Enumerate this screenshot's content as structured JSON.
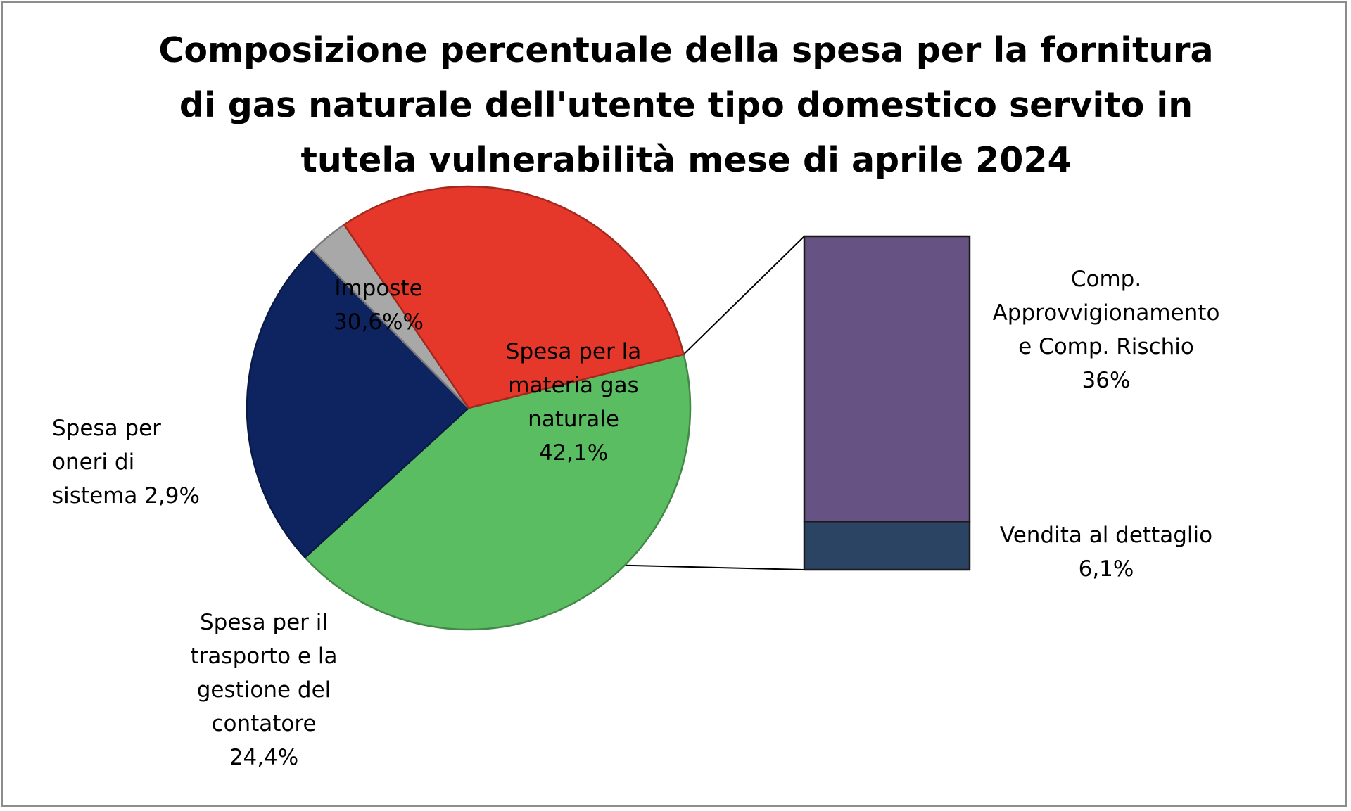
{
  "chart_data": {
    "type": "pie",
    "title_lines": [
      "Composizione percentuale della spesa per la fornitura",
      "di gas naturale dell'utente tipo domestico servito in",
      "tutela vulnerabilità mese di aprile 2024"
    ],
    "slices": [
      {
        "name": "Spesa per la materia gas naturale",
        "value": 42.1,
        "color": "#5bbd62",
        "label_lines": [
          "Spesa per la",
          "materia gas",
          "naturale",
          "42,1%"
        ]
      },
      {
        "name": "Spesa per il trasporto e la gestione del contatore",
        "value": 24.4,
        "color": "#0e2461",
        "label_lines": [
          "Spesa per il",
          "trasporto e la",
          "gestione del",
          "contatore",
          "24,4%"
        ]
      },
      {
        "name": "Spesa per oneri di sistema",
        "value": 2.9,
        "color": "#a8a8a8",
        "label_lines": [
          "Spesa per",
          "oneri di",
          "sistema 2,9%"
        ]
      },
      {
        "name": "Imposte",
        "value": 30.6,
        "color": "#e5372a",
        "label_lines": [
          "Imposte",
          "30,6%%"
        ]
      }
    ],
    "breakdown_of": "Spesa per la materia gas naturale",
    "breakdown": [
      {
        "name": "Comp. Approvvigionamento e Comp. Rischio",
        "value": 36,
        "color": "#665283",
        "label_lines": [
          "Comp.",
          "Approvvigionamento",
          "e  Comp. Rischio",
          "36%"
        ]
      },
      {
        "name": "Vendita al dettaglio",
        "value": 6.1,
        "color": "#2c4463",
        "label_lines": [
          "Vendita al dettaglio",
          "6,1%"
        ]
      }
    ]
  }
}
